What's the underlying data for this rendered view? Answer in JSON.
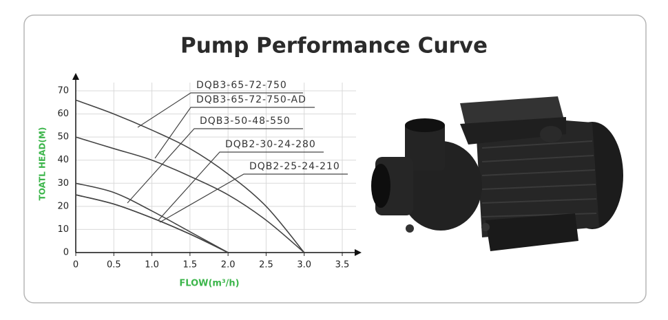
{
  "chart_data": {
    "type": "line",
    "title": "Pump Performance Curve",
    "x_label": "FLOW(m³/h)",
    "y_label": "TOATL HEAD(M)",
    "x": [
      0,
      0.5,
      1,
      1.5,
      2,
      2.5,
      3
    ],
    "series": [
      {
        "name": "DQB3-65-72-750",
        "color": "#444444",
        "values": [
          66,
          60,
          53,
          45,
          34,
          20,
          0
        ]
      },
      {
        "name": "DQB3-65-72-750-AD",
        "color": "#444444",
        "values": [
          50,
          45,
          40,
          33,
          25,
          14,
          0
        ]
      },
      {
        "name": "DQB3-50-48-550",
        "color": "#444444",
        "values": [
          30,
          26,
          18,
          9,
          0,
          null,
          null
        ]
      },
      {
        "name": "DQB2-30-24-280",
        "color": "#444444",
        "values": [
          25,
          21,
          15,
          8,
          0,
          null,
          null
        ]
      },
      {
        "name": "DQB2-25-24-210",
        "color": "#444444",
        "values": [
          25,
          21,
          15,
          8,
          0,
          null,
          null
        ]
      }
    ],
    "xlim": [
      0,
      3.5
    ],
    "ylim": [
      0,
      70
    ],
    "xticks": [
      0,
      0.5,
      {
        "value": 1,
        "label": "1.0"
      },
      1.5,
      {
        "value": 2,
        "label": "2.0"
      },
      2.5,
      {
        "value": 3,
        "label": "3.0"
      },
      3.5
    ],
    "yticks": [
      0,
      10,
      20,
      30,
      40,
      50,
      60,
      70
    ],
    "grid": true
  }
}
